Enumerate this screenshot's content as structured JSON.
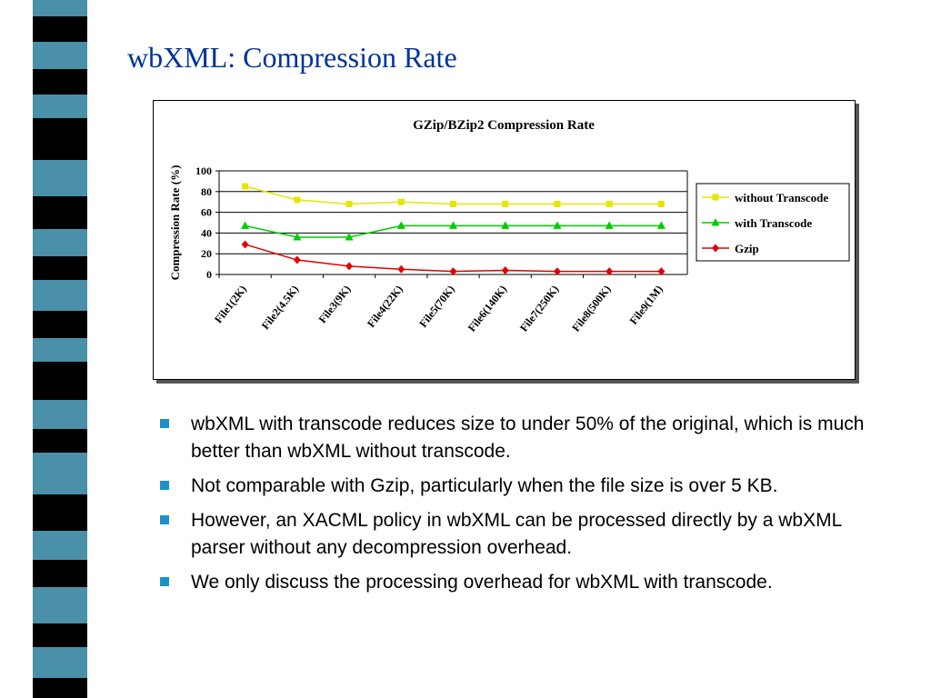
{
  "slide": {
    "title": "wbXML: Compression Rate",
    "stripe_colors": [
      "#4a90a8",
      "#e8e8c0",
      "#003366",
      "#000000",
      "#3366cc",
      "#99ccff",
      "#1e90c8"
    ]
  },
  "bullets": [
    "wbXML with transcode reduces size to under 50% of the original, which is much better than wbXML without transcode.",
    "Not comparable with Gzip, particularly when the file size is over 5 KB.",
    "However, an XACML policy in wbXML can be processed directly by a wbXML parser without any decompression overhead.",
    "We only discuss the processing overhead for wbXML with transcode."
  ],
  "chart_data": {
    "type": "line",
    "title": "GZip/BZip2 Compression Rate",
    "ylabel": "Compression Rate (%)",
    "xlabel": "",
    "categories": [
      "File1(2K)",
      "File2(4.5K)",
      "File3(9K)",
      "File4(22K)",
      "File5(70K)",
      "File6(140K)",
      "File7(250K)",
      "File8(500K)",
      "File9(1M)"
    ],
    "ylim": [
      0,
      100
    ],
    "yticks": [
      0,
      20,
      40,
      60,
      80,
      100
    ],
    "grid": true,
    "legend_position": "right",
    "series": [
      {
        "name": "without Transcode",
        "color": "#e6e600",
        "marker": "square",
        "values": [
          85,
          72,
          68,
          70,
          68,
          68,
          68,
          68,
          68
        ]
      },
      {
        "name": "with Transcode",
        "color": "#00cc00",
        "marker": "triangle",
        "values": [
          47,
          36,
          36,
          47,
          47,
          47,
          47,
          47,
          47
        ]
      },
      {
        "name": "Gzip",
        "color": "#e00000",
        "marker": "diamond",
        "values": [
          29,
          14,
          8,
          5,
          3,
          4,
          3,
          3,
          3
        ]
      }
    ]
  }
}
